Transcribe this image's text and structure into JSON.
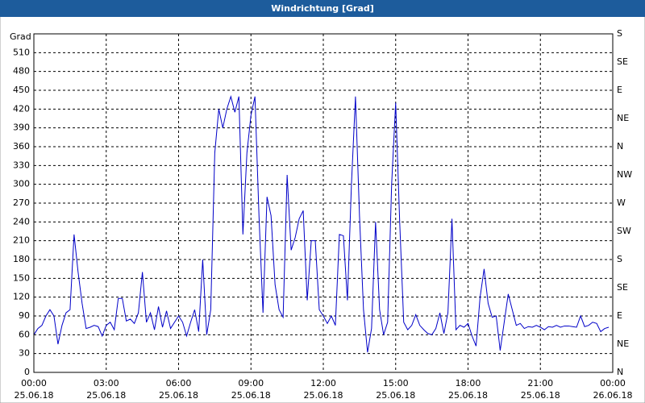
{
  "chart_data": {
    "type": "line",
    "title": "Windrichtung [Grad]",
    "y_label": "Grad",
    "x": [
      0,
      10,
      20,
      30,
      40,
      50,
      60,
      70,
      80,
      90,
      100,
      110,
      120,
      130,
      140,
      150,
      160,
      170,
      180,
      190,
      200,
      210,
      220,
      230,
      240,
      250,
      260,
      270,
      280,
      290,
      300,
      310,
      320,
      330,
      340,
      350,
      360,
      370,
      380,
      390,
      400,
      410,
      420,
      430,
      440,
      450,
      460,
      470,
      480,
      490,
      500,
      510,
      520,
      530,
      540,
      550,
      560,
      570,
      580,
      590,
      600,
      610,
      620,
      630,
      640,
      650,
      660,
      670,
      680,
      690,
      700,
      710,
      720,
      730,
      740,
      750,
      760,
      770,
      780,
      790,
      800,
      810,
      820,
      830,
      840,
      850,
      860,
      870,
      880,
      890,
      900,
      910,
      920,
      930,
      940,
      950,
      960,
      970,
      980,
      990,
      1000,
      1010,
      1020,
      1030,
      1040,
      1050,
      1060,
      1070,
      1080,
      1090,
      1100,
      1110,
      1120,
      1130,
      1140,
      1150,
      1160,
      1170,
      1180,
      1190,
      1200,
      1210,
      1220,
      1230,
      1240,
      1250,
      1260,
      1270,
      1280,
      1290,
      1300,
      1310,
      1320,
      1330,
      1340,
      1350,
      1360,
      1370,
      1380,
      1390,
      1400,
      1410,
      1420,
      1430
    ],
    "series": [
      {
        "color": "#0000c8",
        "values": [
          60,
          70,
          75,
          90,
          100,
          90,
          45,
          75,
          95,
          100,
          220,
          160,
          110,
          70,
          72,
          75,
          73,
          58,
          75,
          80,
          68,
          118,
          118,
          82,
          85,
          78,
          95,
          160,
          80,
          95,
          68,
          105,
          72,
          98,
          70,
          80,
          90,
          80,
          58,
          80,
          100,
          65,
          180,
          60,
          100,
          350,
          420,
          390,
          420,
          440,
          415,
          440,
          220,
          350,
          410,
          440,
          250,
          95,
          280,
          250,
          140,
          100,
          88,
          315,
          195,
          215,
          245,
          258,
          115,
          210,
          210,
          100,
          90,
          78,
          90,
          75,
          220,
          218,
          115,
          300,
          440,
          250,
          100,
          32,
          70,
          240,
          100,
          60,
          80,
          300,
          430,
          240,
          80,
          68,
          75,
          92,
          75,
          68,
          62,
          60,
          70,
          95,
          62,
          95,
          245,
          68,
          75,
          72,
          78,
          58,
          42,
          120,
          165,
          110,
          88,
          90,
          35,
          80,
          125,
          100,
          75,
          78,
          70,
          73,
          72,
          75,
          72,
          68,
          73,
          72,
          75,
          72,
          74,
          74,
          73,
          72,
          90,
          73,
          75,
          80,
          78,
          65,
          70,
          72
        ]
      }
    ],
    "xlim": [
      0,
      1440
    ],
    "xticks": [
      {
        "value": 0,
        "label": "00:00"
      },
      {
        "value": 180,
        "label": "03:00"
      },
      {
        "value": 360,
        "label": "06:00"
      },
      {
        "value": 540,
        "label": "09:00"
      },
      {
        "value": 720,
        "label": "12:00"
      },
      {
        "value": 900,
        "label": "15:00"
      },
      {
        "value": 1080,
        "label": "18:00"
      },
      {
        "value": 1260,
        "label": "21:00"
      },
      {
        "value": 1440,
        "label": "00:00"
      }
    ],
    "xtick_dates": [
      "25.06.18",
      "25.06.18",
      "25.06.18",
      "25.06.18",
      "25.06.18",
      "25.06.18",
      "25.06.18",
      "25.06.18",
      "26.06.18"
    ],
    "ylim": [
      0,
      540
    ],
    "yticks": [
      0,
      30,
      60,
      90,
      120,
      150,
      180,
      210,
      240,
      270,
      300,
      330,
      360,
      390,
      420,
      450,
      480,
      510
    ],
    "y2lim": [
      0,
      540
    ],
    "y2ticks": [
      {
        "value": 0,
        "label": "N"
      },
      {
        "value": 45,
        "label": "NE"
      },
      {
        "value": 90,
        "label": "E"
      },
      {
        "value": 135,
        "label": "SE"
      },
      {
        "value": 180,
        "label": "S"
      },
      {
        "value": 225,
        "label": "SW"
      },
      {
        "value": 270,
        "label": "W"
      },
      {
        "value": 315,
        "label": "NW"
      },
      {
        "value": 360,
        "label": "N"
      },
      {
        "value": 405,
        "label": "NE"
      },
      {
        "value": 450,
        "label": "E"
      },
      {
        "value": 495,
        "label": "SE"
      },
      {
        "value": 540,
        "label": "S"
      }
    ],
    "grid": true
  }
}
